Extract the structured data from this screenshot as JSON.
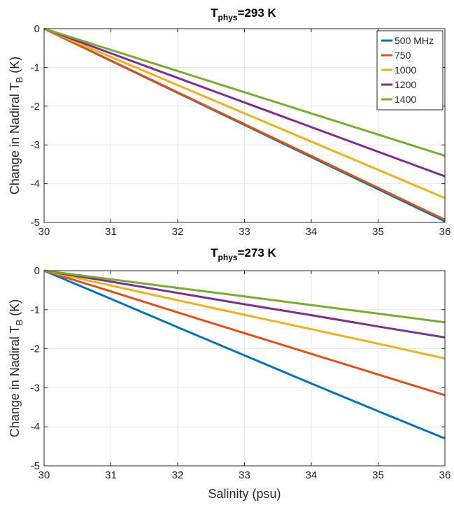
{
  "chart_data": [
    {
      "type": "line",
      "title": "T_phys=293 K",
      "title_main": "T",
      "title_sub": "phys",
      "title_rest": "=293 K",
      "xlabel": "",
      "ylabel_main": "Change in Nadiral T",
      "ylabel_sub": "B",
      "ylabel_rest": " (K)",
      "xlim": [
        30,
        36
      ],
      "ylim": [
        -5,
        0
      ],
      "xticks": [
        "30",
        "31",
        "32",
        "33",
        "34",
        "35",
        "36"
      ],
      "yticks": [
        "0",
        "-1",
        "-2",
        "-3",
        "-4",
        "-5"
      ],
      "grid": true,
      "legend": "top-right",
      "x": [
        30,
        36
      ],
      "series": [
        {
          "name": "500 MHz",
          "color": "#0072BD",
          "values": [
            0,
            -4.97
          ]
        },
        {
          "name": "750",
          "color": "#D95319",
          "values": [
            0,
            -4.93
          ]
        },
        {
          "name": "1000",
          "color": "#EDB120",
          "values": [
            0,
            -4.37
          ]
        },
        {
          "name": "1200",
          "color": "#7E2F8E",
          "values": [
            0,
            -3.81
          ]
        },
        {
          "name": "1400",
          "color": "#77AC30",
          "values": [
            0,
            -3.28
          ]
        }
      ]
    },
    {
      "type": "line",
      "title": "T_phys=273 K",
      "title_main": "T",
      "title_sub": "phys",
      "title_rest": "=273 K",
      "xlabel": "Salinity (psu)",
      "ylabel_main": "Change in Nadiral T",
      "ylabel_sub": "B",
      "ylabel_rest": " (K)",
      "xlim": [
        30,
        36
      ],
      "ylim": [
        -5,
        0
      ],
      "xticks": [
        "30",
        "31",
        "32",
        "33",
        "34",
        "35",
        "36"
      ],
      "yticks": [
        "0",
        "-1",
        "-2",
        "-3",
        "-4",
        "-5"
      ],
      "grid": true,
      "legend": "none",
      "x": [
        30,
        31,
        32,
        33,
        34,
        35,
        36
      ],
      "series": [
        {
          "name": "500 MHz",
          "color": "#0072BD",
          "values": [
            0,
            -0.72,
            -1.45,
            -2.17,
            -2.89,
            -3.6,
            -4.3
          ]
        },
        {
          "name": "750",
          "color": "#D95319",
          "values": [
            0,
            -0.53,
            -1.07,
            -1.6,
            -2.13,
            -2.66,
            -3.19
          ]
        },
        {
          "name": "1000",
          "color": "#EDB120",
          "values": [
            0,
            -0.38,
            -0.76,
            -1.13,
            -1.5,
            -1.87,
            -2.25
          ]
        },
        {
          "name": "1200",
          "color": "#7E2F8E",
          "values": [
            0,
            -0.28,
            -0.57,
            -0.86,
            -1.14,
            -1.43,
            -1.71
          ]
        },
        {
          "name": "1400",
          "color": "#77AC30",
          "values": [
            0,
            -0.22,
            -0.44,
            -0.66,
            -0.88,
            -1.1,
            -1.32
          ]
        }
      ]
    }
  ]
}
